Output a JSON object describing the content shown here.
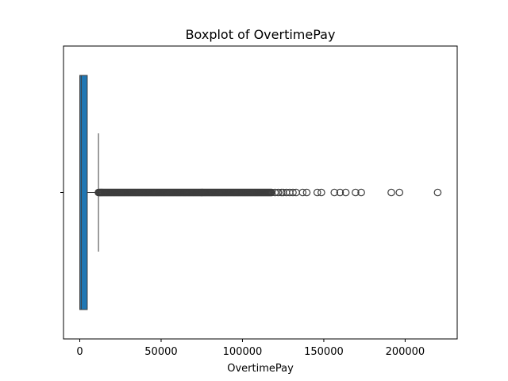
{
  "chart_data": {
    "type": "boxplot",
    "title": "Boxplot of OvertimePay",
    "xlabel": "OvertimePay",
    "ylabel": "",
    "xlim": [
      -10000,
      232000
    ],
    "xticks": [
      0,
      50000,
      100000,
      150000,
      200000
    ],
    "xtick_labels": [
      "0",
      "50000",
      "100000",
      "150000",
      "200000"
    ],
    "orientation": "horizontal",
    "box": {
      "q1": 0,
      "median": 900,
      "q3": 4600,
      "whisker_low": 0,
      "whisker_high": 11500,
      "color": "#1f77b4"
    },
    "outliers_dense_range": [
      11500,
      118000
    ],
    "outliers": [
      120000,
      122000,
      124000,
      125000,
      127000,
      129000,
      131000,
      133000,
      137000,
      139500,
      146000,
      148500,
      156500,
      160000,
      163500,
      169500,
      173000,
      191500,
      196500,
      220000
    ],
    "grid": false
  }
}
